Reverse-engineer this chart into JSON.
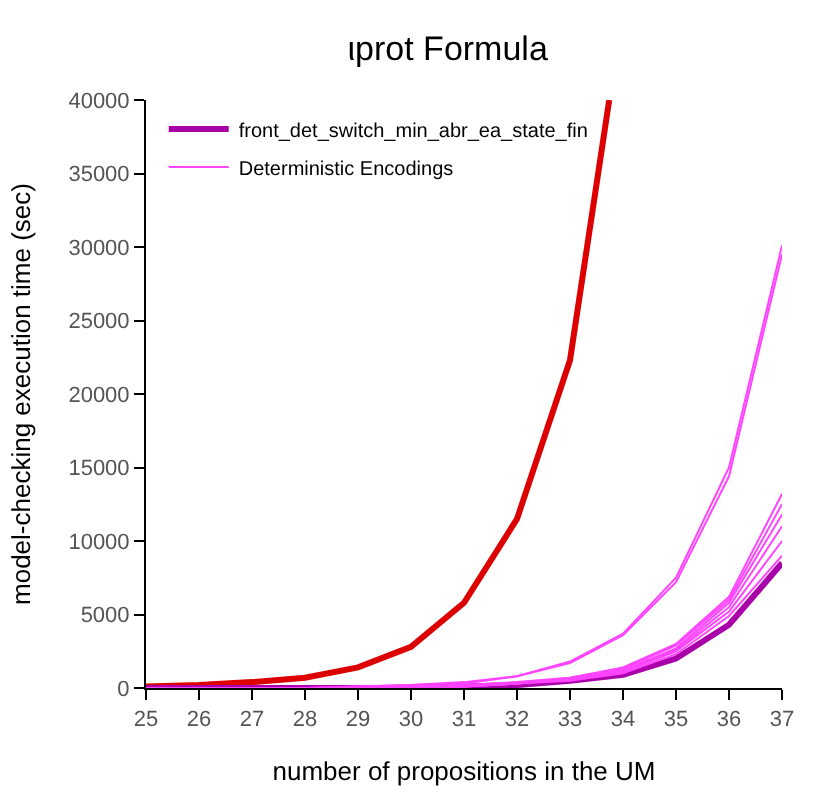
{
  "chart_data": {
    "type": "line",
    "title": "ιprot Formula",
    "xlabel": "number of propositions in the UM",
    "ylabel": "model-checking execution time (sec)",
    "x": [
      25,
      26,
      27,
      28,
      29,
      30,
      31,
      32,
      33,
      34,
      35,
      36,
      37
    ],
    "series": [
      {
        "color": "#dd0000",
        "x": [
          25,
          26,
          27,
          28,
          29,
          30,
          31,
          32,
          33,
          33.74
        ],
        "values": [
          100,
          200,
          400,
          700,
          1400,
          2800,
          5800,
          11500,
          22300,
          40000
        ]
      },
      {
        "name": "front_det_switch_min_abr_ea_state_fin",
        "color": "#aa00aa",
        "values": [
          0,
          0,
          0,
          0,
          0,
          0,
          100,
          200,
          500,
          900,
          2000,
          4300,
          8500
        ]
      },
      {
        "name": "Deterministic Encodings",
        "color": "#ff44ff",
        "values": [
          0,
          0,
          0,
          0,
          100,
          200,
          400,
          800,
          1800,
          3700,
          7500,
          15000,
          30100
        ]
      },
      {
        "color": "#ff44ff",
        "values": [
          0,
          0,
          0,
          0,
          100,
          200,
          300,
          800,
          1700,
          3600,
          7200,
          14400,
          29500
        ]
      },
      {
        "color": "#ff44ff",
        "values": [
          0,
          0,
          0,
          0,
          0,
          100,
          200,
          400,
          700,
          1400,
          3000,
          6200,
          13200
        ]
      },
      {
        "color": "#ff44ff",
        "values": [
          0,
          0,
          0,
          0,
          0,
          100,
          200,
          300,
          700,
          1300,
          2900,
          6000,
          12500
        ]
      },
      {
        "color": "#ff44ff",
        "values": [
          0,
          0,
          0,
          0,
          0,
          100,
          100,
          300,
          600,
          1200,
          2700,
          5800,
          11800
        ]
      },
      {
        "color": "#ff44ff",
        "values": [
          0,
          0,
          0,
          0,
          0,
          100,
          100,
          300,
          600,
          1200,
          2600,
          5500,
          11000
        ]
      },
      {
        "color": "#ff44ff",
        "values": [
          0,
          0,
          0,
          0,
          0,
          100,
          100,
          300,
          600,
          1100,
          2500,
          5200,
          10000
        ]
      },
      {
        "color": "#ff44ff",
        "values": [
          0,
          0,
          0,
          0,
          0,
          100,
          100,
          300,
          500,
          1000,
          2300,
          4900,
          9000
        ]
      }
    ],
    "xlim": [
      25,
      37
    ],
    "xticks": [
      25,
      26,
      27,
      28,
      29,
      30,
      31,
      32,
      33,
      34,
      35,
      36,
      37
    ],
    "ylim": [
      0,
      40000
    ],
    "yticks": [
      0,
      5000,
      10000,
      15000,
      20000,
      25000,
      30000,
      35000,
      40000
    ],
    "legend": "top left"
  }
}
